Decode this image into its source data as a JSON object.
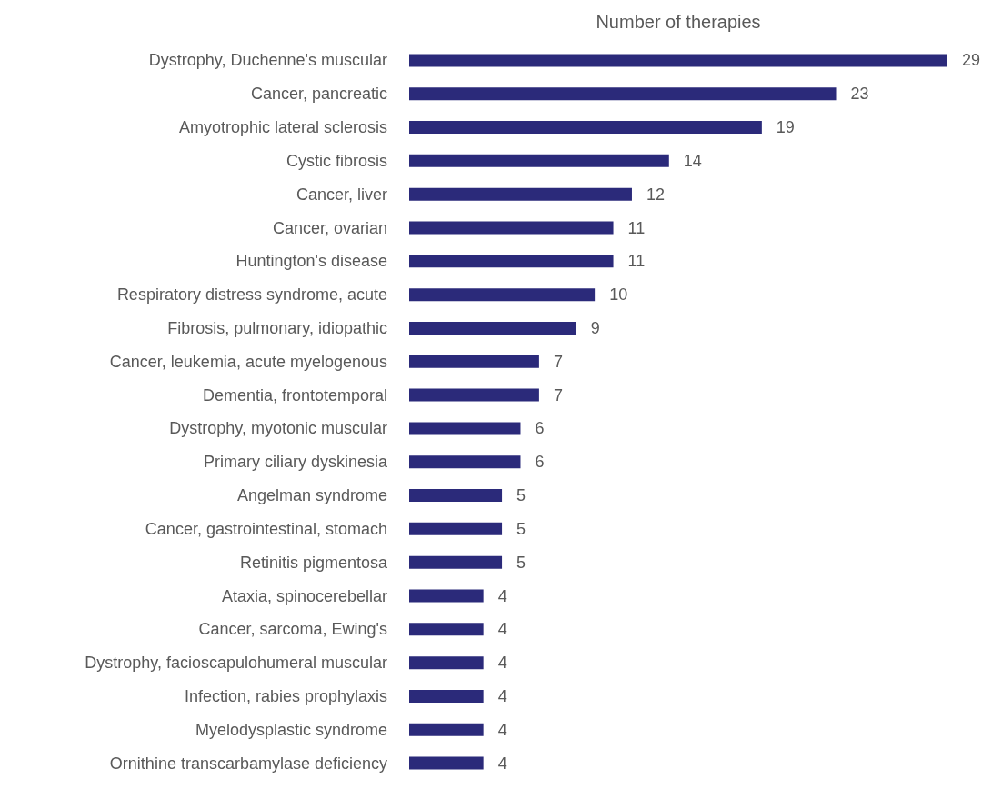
{
  "chart_data": {
    "type": "bar",
    "orientation": "horizontal",
    "xlabel": "Number of therapies",
    "color": "#2b2a7a",
    "data_labels": true,
    "categories": [
      "Dystrophy, Duchenne's muscular",
      "Cancer, pancreatic",
      "Amyotrophic lateral sclerosis",
      "Cystic fibrosis",
      "Cancer, liver",
      "Cancer, ovarian",
      "Huntington's disease",
      "Respiratory distress syndrome, acute",
      "Fibrosis, pulmonary, idiopathic",
      "Cancer, leukemia, acute myelogenous",
      "Dementia, frontotemporal",
      "Dystrophy, myotonic muscular",
      "Primary ciliary dyskinesia",
      "Angelman syndrome",
      "Cancer, gastrointestinal, stomach",
      "Retinitis pigmentosa",
      "Ataxia, spinocerebellar",
      "Cancer, sarcoma, Ewing's",
      "Dystrophy, facioscapulohumeral muscular",
      "Infection, rabies prophylaxis",
      "Myelodysplastic syndrome",
      "Ornithine transcarbamylase deficiency"
    ],
    "values": [
      29,
      23,
      19,
      14,
      12,
      11,
      11,
      10,
      9,
      7,
      7,
      6,
      6,
      5,
      5,
      5,
      4,
      4,
      4,
      4,
      4,
      4
    ]
  }
}
